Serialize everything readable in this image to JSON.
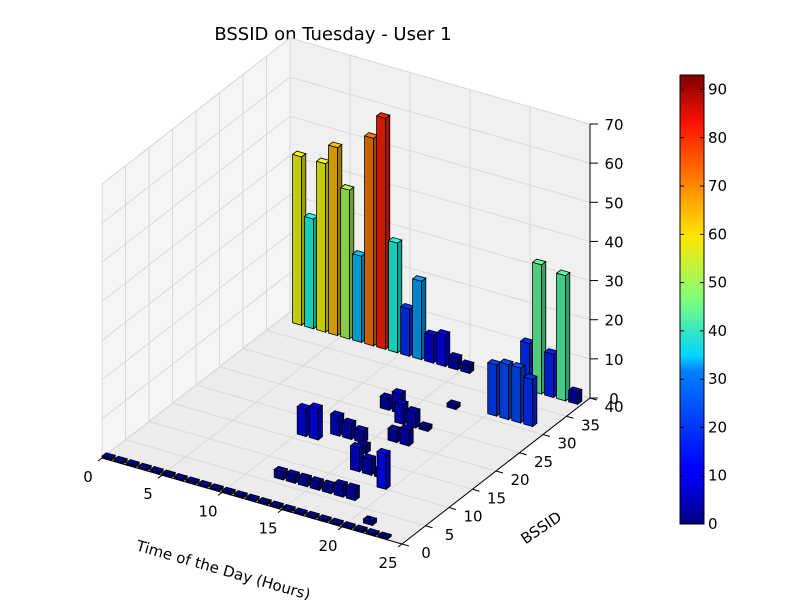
{
  "chart_data": {
    "type": "bar3d",
    "title": "BSSID on Tuesday - User 1",
    "xlabel": "Time of the Day (Hours)",
    "ylabel": "BSSID",
    "zlabel": "",
    "xlim": [
      0,
      25
    ],
    "ylim": [
      0,
      40
    ],
    "zlim": [
      0,
      70
    ],
    "x_ticks": [
      "0",
      "5",
      "10",
      "15",
      "20",
      "25"
    ],
    "y_ticks": [
      "0",
      "5",
      "10",
      "15",
      "20",
      "25",
      "30",
      "35",
      "40"
    ],
    "z_ticks": [
      "0",
      "10",
      "20",
      "30",
      "40",
      "50",
      "60",
      "70"
    ],
    "colorbar": {
      "colormap": "jet",
      "range": [
        0,
        93
      ],
      "ticks": [
        "0",
        "10",
        "20",
        "30",
        "40",
        "50",
        "60",
        "70",
        "80",
        "90"
      ]
    },
    "bars": [
      {
        "x": 0,
        "y": 0,
        "z": 0.5
      },
      {
        "x": 1,
        "y": 0,
        "z": 0.5
      },
      {
        "x": 2,
        "y": 0,
        "z": 0.5
      },
      {
        "x": 3,
        "y": 0,
        "z": 0.5
      },
      {
        "x": 4,
        "y": 0,
        "z": 0.5
      },
      {
        "x": 5,
        "y": 0,
        "z": 0.5
      },
      {
        "x": 6,
        "y": 0,
        "z": 0.5
      },
      {
        "x": 7,
        "y": 0,
        "z": 0.5
      },
      {
        "x": 8,
        "y": 0,
        "z": 0.5
      },
      {
        "x": 9,
        "y": 0,
        "z": 0.5
      },
      {
        "x": 10,
        "y": 0,
        "z": 0.5
      },
      {
        "x": 11,
        "y": 0,
        "z": 0.5
      },
      {
        "x": 12,
        "y": 0,
        "z": 0.5
      },
      {
        "x": 13,
        "y": 0,
        "z": 0.5
      },
      {
        "x": 14,
        "y": 0,
        "z": 0.5
      },
      {
        "x": 15,
        "y": 0,
        "z": 0.5
      },
      {
        "x": 16,
        "y": 0,
        "z": 0.5
      },
      {
        "x": 17,
        "y": 0,
        "z": 0.5
      },
      {
        "x": 18,
        "y": 0,
        "z": 0.5
      },
      {
        "x": 19,
        "y": 0,
        "z": 0.5
      },
      {
        "x": 20,
        "y": 0,
        "z": 0.5
      },
      {
        "x": 21,
        "y": 0,
        "z": 0.5
      },
      {
        "x": 22,
        "y": 0,
        "z": 0.5
      },
      {
        "x": 23,
        "y": 0,
        "z": 0.5
      },
      {
        "x": 1,
        "y": 38,
        "z": 43
      },
      {
        "x": 2,
        "y": 38,
        "z": 28
      },
      {
        "x": 3,
        "y": 38,
        "z": 43
      },
      {
        "x": 4,
        "y": 38,
        "z": 48
      },
      {
        "x": 5,
        "y": 38,
        "z": 38
      },
      {
        "x": 6,
        "y": 38,
        "z": 22
      },
      {
        "x": 7,
        "y": 38,
        "z": 53
      },
      {
        "x": 8,
        "y": 38,
        "z": 59
      },
      {
        "x": 9,
        "y": 38,
        "z": 28
      },
      {
        "x": 10,
        "y": 38,
        "z": 12
      },
      {
        "x": 11,
        "y": 38,
        "z": 20
      },
      {
        "x": 12,
        "y": 38,
        "z": 7
      },
      {
        "x": 13,
        "y": 38,
        "z": 8
      },
      {
        "x": 14,
        "y": 38,
        "z": 3
      },
      {
        "x": 15,
        "y": 38,
        "z": 2
      },
      {
        "x": 18,
        "y": 38,
        "z": 1
      },
      {
        "x": 19,
        "y": 38,
        "z": 2
      },
      {
        "x": 20,
        "y": 38,
        "z": 12
      },
      {
        "x": 21,
        "y": 38,
        "z": 33
      },
      {
        "x": 22,
        "y": 38,
        "z": 11
      },
      {
        "x": 23,
        "y": 38,
        "z": 32
      },
      {
        "x": 24,
        "y": 38,
        "z": 3
      },
      {
        "x": 20,
        "y": 31,
        "z": 13
      },
      {
        "x": 21,
        "y": 31,
        "z": 14
      },
      {
        "x": 22,
        "y": 31,
        "z": 14
      },
      {
        "x": 23,
        "y": 31,
        "z": 12
      },
      {
        "x": 17,
        "y": 30,
        "z": 1
      },
      {
        "x": 17,
        "y": 24,
        "z": 1
      },
      {
        "x": 13,
        "y": 26,
        "z": 3
      },
      {
        "x": 14,
        "y": 26,
        "z": 5
      },
      {
        "x": 15,
        "y": 24,
        "z": 5
      },
      {
        "x": 16,
        "y": 24,
        "z": 4
      },
      {
        "x": 16,
        "y": 20,
        "z": 3
      },
      {
        "x": 17,
        "y": 20,
        "z": 4
      },
      {
        "x": 10,
        "y": 16,
        "z": 7
      },
      {
        "x": 11,
        "y": 16,
        "z": 8
      },
      {
        "x": 12,
        "y": 18,
        "z": 5
      },
      {
        "x": 13,
        "y": 18,
        "z": 4
      },
      {
        "x": 14,
        "y": 18,
        "z": 3
      },
      {
        "x": 15,
        "y": 16,
        "z": 2
      },
      {
        "x": 16,
        "y": 12,
        "z": 6
      },
      {
        "x": 17,
        "y": 12,
        "z": 4
      },
      {
        "x": 18,
        "y": 12,
        "z": 2
      },
      {
        "x": 19,
        "y": 10,
        "z": 9
      },
      {
        "x": 12,
        "y": 6,
        "z": 2
      },
      {
        "x": 13,
        "y": 6,
        "z": 2
      },
      {
        "x": 14,
        "y": 6,
        "z": 2
      },
      {
        "x": 15,
        "y": 6,
        "z": 2
      },
      {
        "x": 16,
        "y": 6,
        "z": 2
      },
      {
        "x": 17,
        "y": 6,
        "z": 3
      },
      {
        "x": 18,
        "y": 6,
        "z": 3
      },
      {
        "x": 21,
        "y": 2,
        "z": 1
      }
    ]
  }
}
